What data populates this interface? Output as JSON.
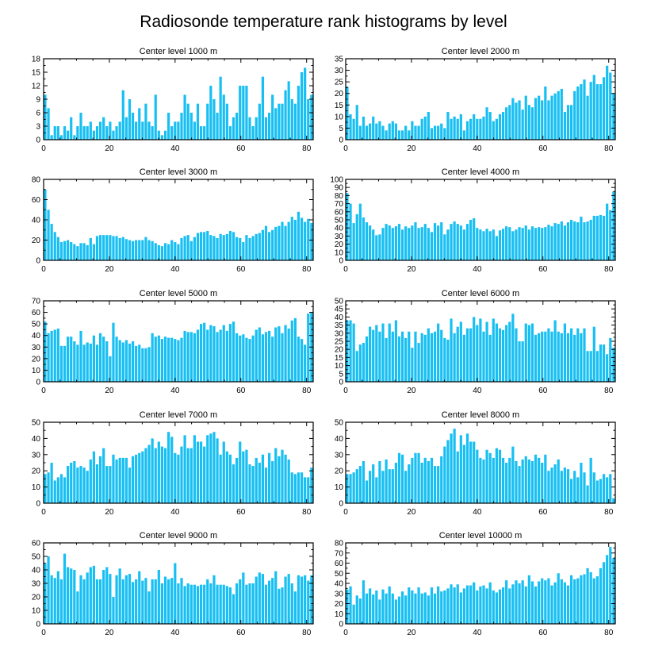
{
  "figure": {
    "title": "Radiosonde temperature rank histograms by level",
    "bar_color": "#17BFF2",
    "axis_color": "#000000"
  },
  "chart_data": [
    {
      "type": "bar",
      "title": "Center level 1000 m",
      "xlim": [
        0,
        82
      ],
      "xticks": [
        0,
        20,
        40,
        60,
        80
      ],
      "ylim": [
        0,
        18
      ],
      "yticks": [
        0,
        3,
        6,
        9,
        12,
        15,
        18
      ],
      "values": [
        10,
        7,
        1,
        3,
        3,
        1,
        3,
        2,
        5,
        1,
        3,
        6,
        3,
        3,
        4,
        2,
        3,
        4,
        5,
        3,
        4,
        2,
        3,
        4,
        11,
        5,
        9,
        6,
        4,
        7,
        4,
        8,
        4,
        3,
        10,
        2,
        1,
        2,
        6,
        3,
        4,
        4,
        6,
        10,
        8,
        6,
        4,
        8,
        3,
        3,
        8,
        12,
        9,
        6,
        14,
        10,
        8,
        3,
        5,
        6,
        12,
        12,
        12,
        5,
        3,
        5,
        8,
        14,
        5,
        6,
        10,
        7,
        8,
        8,
        11,
        13,
        9,
        8,
        12,
        15,
        16,
        9,
        10
      ]
    },
    {
      "type": "bar",
      "title": "Center level 2000 m",
      "xlim": [
        0,
        82
      ],
      "xticks": [
        0,
        20,
        40,
        60,
        80
      ],
      "ylim": [
        0,
        35
      ],
      "yticks": [
        0,
        5,
        10,
        15,
        20,
        25,
        30,
        35
      ],
      "values": [
        23,
        11,
        9,
        15,
        6,
        10,
        6,
        7,
        10,
        7,
        8,
        6,
        4,
        7,
        8,
        7,
        4,
        4,
        6,
        4,
        8,
        6,
        6,
        9,
        10,
        12,
        5,
        6,
        6,
        7,
        5,
        12,
        9,
        10,
        9,
        11,
        4,
        8,
        9,
        11,
        9,
        9,
        10,
        14,
        12,
        8,
        9,
        11,
        12,
        14,
        15,
        18,
        16,
        17,
        13,
        19,
        15,
        14,
        18,
        19,
        17,
        23,
        17,
        19,
        20,
        21,
        22,
        12,
        15,
        15,
        21,
        23,
        24,
        26,
        19,
        25,
        28,
        24,
        24,
        27,
        32,
        29,
        20
      ]
    },
    {
      "type": "bar",
      "title": "Center level 3000 m",
      "xlim": [
        0,
        82
      ],
      "xticks": [
        0,
        20,
        40,
        60,
        80
      ],
      "ylim": [
        0,
        80
      ],
      "yticks": [
        0,
        20,
        40,
        60,
        80
      ],
      "values": [
        70,
        50,
        36,
        28,
        23,
        18,
        19,
        20,
        18,
        16,
        14,
        17,
        17,
        15,
        22,
        16,
        24,
        25,
        25,
        25,
        25,
        24,
        24,
        22,
        23,
        21,
        20,
        19,
        20,
        20,
        20,
        23,
        20,
        19,
        17,
        15,
        14,
        17,
        16,
        20,
        18,
        16,
        22,
        24,
        25,
        19,
        23,
        27,
        28,
        28,
        29,
        25,
        24,
        22,
        26,
        25,
        26,
        29,
        28,
        23,
        22,
        18,
        25,
        22,
        24,
        26,
        27,
        30,
        34,
        28,
        30,
        33,
        34,
        38,
        34,
        38,
        43,
        40,
        48,
        42,
        38,
        41,
        37
      ]
    },
    {
      "type": "bar",
      "title": "Center level 4000 m",
      "xlim": [
        0,
        82
      ],
      "xticks": [
        0,
        20,
        40,
        60,
        80
      ],
      "ylim": [
        0,
        100
      ],
      "yticks": [
        0,
        10,
        20,
        30,
        40,
        50,
        60,
        70,
        80,
        90,
        100
      ],
      "values": [
        83,
        70,
        46,
        57,
        70,
        53,
        47,
        43,
        38,
        31,
        32,
        40,
        45,
        43,
        40,
        42,
        45,
        38,
        42,
        40,
        43,
        47,
        40,
        41,
        45,
        40,
        35,
        46,
        43,
        47,
        32,
        38,
        45,
        48,
        45,
        43,
        38,
        45,
        50,
        52,
        40,
        38,
        36,
        39,
        36,
        38,
        30,
        37,
        39,
        42,
        41,
        36,
        38,
        41,
        40,
        43,
        38,
        42,
        40,
        41,
        40,
        41,
        44,
        42,
        46,
        45,
        48,
        43,
        47,
        50,
        48,
        47,
        54,
        47,
        48,
        50,
        55,
        55,
        56,
        55,
        70,
        62,
        85
      ]
    },
    {
      "type": "bar",
      "title": "Center level 5000 m",
      "xlim": [
        0,
        82
      ],
      "xticks": [
        0,
        20,
        40,
        60,
        80
      ],
      "ylim": [
        0,
        70
      ],
      "yticks": [
        0,
        10,
        20,
        30,
        40,
        50,
        60,
        70
      ],
      "values": [
        52,
        42,
        44,
        45,
        46,
        31,
        31,
        39,
        39,
        35,
        32,
        44,
        32,
        34,
        33,
        40,
        32,
        42,
        39,
        35,
        22,
        51,
        39,
        36,
        34,
        36,
        33,
        35,
        31,
        32,
        29,
        29,
        30,
        42,
        39,
        40,
        37,
        39,
        38,
        38,
        37,
        36,
        38,
        44,
        43,
        43,
        42,
        45,
        50,
        51,
        45,
        49,
        48,
        43,
        45,
        49,
        44,
        50,
        52,
        42,
        40,
        41,
        38,
        37,
        40,
        45,
        47,
        41,
        43,
        44,
        39,
        47,
        48,
        42,
        49,
        46,
        53,
        55,
        39,
        37,
        32,
        59,
        60
      ]
    },
    {
      "type": "bar",
      "title": "Center level 6000 m",
      "xlim": [
        0,
        82
      ],
      "xticks": [
        0,
        20,
        40,
        60,
        80
      ],
      "ylim": [
        0,
        50
      ],
      "yticks": [
        0,
        5,
        10,
        15,
        20,
        25,
        30,
        35,
        40,
        45,
        50
      ],
      "values": [
        38,
        38,
        36,
        19,
        23,
        24,
        28,
        34,
        32,
        35,
        31,
        36,
        27,
        36,
        31,
        38,
        28,
        31,
        27,
        31,
        21,
        31,
        24,
        30,
        29,
        33,
        30,
        31,
        36,
        32,
        27,
        26,
        39,
        30,
        34,
        37,
        29,
        33,
        33,
        40,
        35,
        39,
        31,
        37,
        29,
        39,
        36,
        33,
        32,
        35,
        37,
        42,
        33,
        25,
        25,
        36,
        35,
        36,
        29,
        30,
        31,
        31,
        33,
        31,
        38,
        31,
        30,
        36,
        30,
        33,
        29,
        33,
        30,
        33,
        19,
        19,
        34,
        19,
        23,
        23,
        17,
        27,
        21
      ]
    },
    {
      "type": "bar",
      "title": "Center level 7000 m",
      "xlim": [
        0,
        82
      ],
      "xticks": [
        0,
        20,
        40,
        60,
        80
      ],
      "ylim": [
        0,
        50
      ],
      "yticks": [
        0,
        10,
        20,
        30,
        40,
        50
      ],
      "values": [
        18,
        19,
        25,
        14,
        16,
        18,
        16,
        23,
        25,
        26,
        22,
        23,
        22,
        20,
        27,
        32,
        24,
        29,
        34,
        23,
        23,
        30,
        27,
        28,
        28,
        28,
        22,
        29,
        30,
        31,
        32,
        34,
        36,
        40,
        34,
        38,
        35,
        34,
        44,
        41,
        31,
        30,
        35,
        42,
        34,
        34,
        42,
        38,
        38,
        35,
        42,
        43,
        44,
        40,
        30,
        38,
        32,
        30,
        24,
        28,
        38,
        32,
        33,
        24,
        23,
        28,
        25,
        30,
        22,
        31,
        26,
        34,
        29,
        33,
        30,
        27,
        19,
        18,
        19,
        19,
        16,
        16,
        22
      ]
    },
    {
      "type": "bar",
      "title": "Center level 8000 m",
      "xlim": [
        0,
        82
      ],
      "xticks": [
        0,
        20,
        40,
        60,
        80
      ],
      "ylim": [
        0,
        50
      ],
      "yticks": [
        0,
        10,
        20,
        30,
        40,
        50
      ],
      "values": [
        18,
        18,
        19,
        21,
        23,
        26,
        14,
        20,
        24,
        16,
        26,
        20,
        27,
        21,
        21,
        25,
        31,
        30,
        20,
        24,
        28,
        31,
        31,
        25,
        28,
        26,
        28,
        23,
        23,
        29,
        35,
        39,
        43,
        46,
        32,
        42,
        36,
        43,
        38,
        38,
        33,
        28,
        27,
        33,
        31,
        28,
        34,
        33,
        28,
        25,
        28,
        35,
        26,
        23,
        27,
        29,
        27,
        26,
        30,
        28,
        25,
        30,
        20,
        22,
        24,
        27,
        20,
        22,
        21,
        15,
        20,
        16,
        25,
        19,
        11,
        28,
        19,
        14,
        15,
        18,
        16,
        18,
        3
      ]
    },
    {
      "type": "bar",
      "title": "Center level 9000 m",
      "xlim": [
        0,
        82
      ],
      "xticks": [
        0,
        20,
        40,
        60,
        80
      ],
      "ylim": [
        0,
        60
      ],
      "yticks": [
        0,
        10,
        20,
        30,
        40,
        50,
        60
      ],
      "values": [
        45,
        50,
        36,
        34,
        39,
        33,
        52,
        42,
        41,
        40,
        24,
        36,
        33,
        38,
        42,
        43,
        33,
        33,
        40,
        42,
        37,
        20,
        36,
        41,
        33,
        36,
        37,
        31,
        33,
        39,
        32,
        34,
        24,
        33,
        33,
        40,
        30,
        35,
        33,
        34,
        45,
        30,
        34,
        28,
        30,
        29,
        29,
        28,
        29,
        29,
        33,
        30,
        36,
        29,
        29,
        29,
        28,
        27,
        22,
        30,
        33,
        38,
        29,
        30,
        30,
        35,
        38,
        37,
        29,
        32,
        34,
        39,
        26,
        27,
        35,
        37,
        30,
        24,
        36,
        35,
        36,
        32,
        36
      ]
    },
    {
      "type": "bar",
      "title": "Center level 10000 m",
      "xlim": [
        0,
        82
      ],
      "xticks": [
        0,
        20,
        40,
        60,
        80
      ],
      "ylim": [
        0,
        80
      ],
      "yticks": [
        0,
        10,
        20,
        30,
        40,
        50,
        60,
        70,
        80
      ],
      "values": [
        34,
        37,
        19,
        28,
        25,
        43,
        30,
        35,
        29,
        33,
        24,
        34,
        30,
        37,
        30,
        24,
        27,
        32,
        28,
        36,
        33,
        30,
        36,
        30,
        31,
        28,
        36,
        30,
        37,
        32,
        33,
        35,
        39,
        36,
        39,
        31,
        35,
        38,
        38,
        41,
        33,
        37,
        38,
        35,
        41,
        33,
        31,
        34,
        36,
        43,
        35,
        39,
        43,
        40,
        43,
        37,
        48,
        42,
        37,
        42,
        45,
        43,
        45,
        38,
        41,
        50,
        44,
        41,
        38,
        48,
        44,
        45,
        48,
        49,
        55,
        51,
        45,
        47,
        55,
        61,
        68,
        76,
        65
      ]
    }
  ]
}
